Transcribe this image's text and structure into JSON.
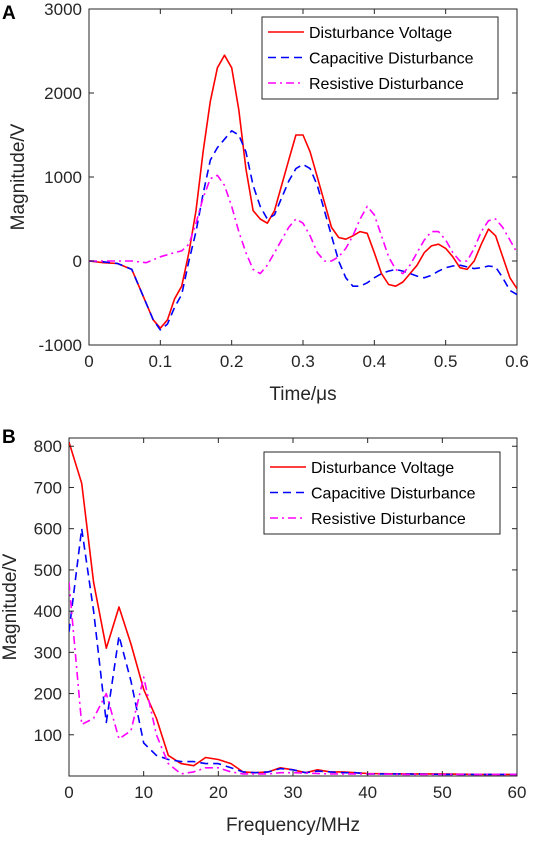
{
  "chart_data": [
    {
      "type": "line",
      "panel_label": "A",
      "xlabel": "Time/μs",
      "ylabel": "Magnitude/V",
      "xlim": [
        0,
        0.6
      ],
      "ylim": [
        -1000,
        3000
      ],
      "xticks": [
        0,
        0.1,
        0.2,
        0.3,
        0.4,
        0.5,
        0.6
      ],
      "xtick_labels": [
        "0",
        "0.1",
        "0.2",
        "0.3",
        "0.4",
        "0.5",
        "0.6"
      ],
      "yticks": [
        -1000,
        0,
        1000,
        2000,
        3000
      ],
      "ytick_labels": [
        "-1000",
        "0",
        "1000",
        "2000",
        "3000"
      ],
      "grid": false,
      "legend_position": "top-right",
      "series": [
        {
          "name": "Disturbance Voltage",
          "color": "#ff0000",
          "dash": "solid",
          "x": [
            0,
            0.02,
            0.04,
            0.06,
            0.075,
            0.09,
            0.1,
            0.11,
            0.12,
            0.13,
            0.14,
            0.15,
            0.16,
            0.17,
            0.18,
            0.19,
            0.2,
            0.21,
            0.22,
            0.23,
            0.24,
            0.25,
            0.26,
            0.27,
            0.28,
            0.29,
            0.3,
            0.31,
            0.32,
            0.33,
            0.34,
            0.35,
            0.36,
            0.37,
            0.38,
            0.39,
            0.4,
            0.41,
            0.42,
            0.43,
            0.44,
            0.45,
            0.46,
            0.47,
            0.48,
            0.49,
            0.5,
            0.51,
            0.52,
            0.53,
            0.54,
            0.55,
            0.56,
            0.57,
            0.58,
            0.59,
            0.6
          ],
          "y": [
            0,
            -20,
            -30,
            -100,
            -400,
            -700,
            -800,
            -700,
            -450,
            -300,
            100,
            600,
            1300,
            1900,
            2300,
            2450,
            2300,
            1800,
            1100,
            600,
            500,
            450,
            600,
            900,
            1200,
            1500,
            1500,
            1300,
            1000,
            700,
            400,
            280,
            260,
            300,
            350,
            330,
            100,
            -150,
            -280,
            -300,
            -250,
            -150,
            -50,
            100,
            180,
            200,
            150,
            50,
            -80,
            -100,
            0,
            200,
            380,
            300,
            50,
            -200,
            -330
          ]
        },
        {
          "name": "Capacitive Disturbance",
          "color": "#0000ff",
          "dash": "dashed",
          "x": [
            0,
            0.02,
            0.04,
            0.06,
            0.075,
            0.09,
            0.1,
            0.11,
            0.12,
            0.13,
            0.14,
            0.15,
            0.16,
            0.17,
            0.18,
            0.19,
            0.2,
            0.21,
            0.22,
            0.23,
            0.24,
            0.25,
            0.26,
            0.27,
            0.28,
            0.29,
            0.3,
            0.31,
            0.32,
            0.33,
            0.34,
            0.35,
            0.36,
            0.37,
            0.38,
            0.39,
            0.4,
            0.41,
            0.42,
            0.43,
            0.44,
            0.45,
            0.46,
            0.47,
            0.48,
            0.49,
            0.5,
            0.51,
            0.52,
            0.53,
            0.54,
            0.55,
            0.56,
            0.57,
            0.58,
            0.59,
            0.6
          ],
          "y": [
            0,
            -10,
            -30,
            -100,
            -400,
            -700,
            -820,
            -750,
            -550,
            -400,
            0,
            350,
            800,
            1200,
            1350,
            1450,
            1550,
            1500,
            1300,
            900,
            650,
            500,
            550,
            750,
            950,
            1100,
            1150,
            1100,
            900,
            600,
            300,
            0,
            -200,
            -300,
            -300,
            -260,
            -200,
            -150,
            -120,
            -100,
            -120,
            -150,
            -180,
            -200,
            -170,
            -120,
            -80,
            -60,
            -50,
            -70,
            -90,
            -80,
            -60,
            -70,
            -200,
            -350,
            -400
          ]
        },
        {
          "name": "Resistive Disturbance",
          "color": "#ff00ff",
          "dash": "dashdot",
          "x": [
            0,
            0.02,
            0.04,
            0.06,
            0.08,
            0.1,
            0.12,
            0.13,
            0.14,
            0.15,
            0.16,
            0.17,
            0.18,
            0.19,
            0.2,
            0.21,
            0.22,
            0.23,
            0.24,
            0.25,
            0.26,
            0.27,
            0.28,
            0.29,
            0.3,
            0.31,
            0.32,
            0.33,
            0.34,
            0.35,
            0.36,
            0.37,
            0.38,
            0.39,
            0.4,
            0.41,
            0.42,
            0.43,
            0.44,
            0.45,
            0.46,
            0.47,
            0.48,
            0.49,
            0.5,
            0.51,
            0.52,
            0.53,
            0.54,
            0.55,
            0.56,
            0.57,
            0.58,
            0.59,
            0.6
          ],
          "y": [
            0,
            0,
            0,
            0,
            -20,
            50,
            100,
            120,
            200,
            450,
            750,
            980,
            1020,
            900,
            650,
            350,
            100,
            -100,
            -150,
            -50,
            100,
            250,
            400,
            500,
            450,
            300,
            100,
            0,
            0,
            50,
            150,
            300,
            500,
            650,
            550,
            300,
            50,
            -100,
            -150,
            -50,
            100,
            250,
            350,
            350,
            250,
            100,
            0,
            0,
            150,
            350,
            480,
            500,
            400,
            250,
            100
          ]
        }
      ]
    },
    {
      "type": "line",
      "panel_label": "B",
      "xlabel": "Frequency/MHz",
      "ylabel": "Magnitude/V",
      "xlim": [
        0,
        60
      ],
      "ylim": [
        0,
        820
      ],
      "xticks": [
        0,
        10,
        20,
        30,
        40,
        50,
        60
      ],
      "xtick_labels": [
        "0",
        "10",
        "20",
        "30",
        "40",
        "50",
        "60"
      ],
      "yticks": [
        100,
        200,
        300,
        400,
        500,
        600,
        700,
        800
      ],
      "ytick_labels": [
        "100",
        "200",
        "300",
        "400",
        "500",
        "600",
        "700",
        "800"
      ],
      "grid": false,
      "legend_position": "top-right",
      "series": [
        {
          "name": "Disturbance Voltage",
          "color": "#ff0000",
          "dash": "solid",
          "x": [
            0,
            1.7,
            3.3,
            5,
            6.7,
            8.3,
            10,
            11.7,
            13.3,
            15,
            16.7,
            18.3,
            20,
            21.7,
            23.3,
            25,
            26.7,
            28.3,
            30,
            31.7,
            33.3,
            35,
            36.7,
            38.3,
            40,
            45,
            50,
            55,
            60
          ],
          "y": [
            810,
            710,
            470,
            310,
            410,
            320,
            210,
            140,
            50,
            30,
            25,
            45,
            40,
            30,
            10,
            8,
            10,
            20,
            15,
            8,
            15,
            10,
            10,
            8,
            6,
            5,
            5,
            4,
            4
          ]
        },
        {
          "name": "Capacitive Disturbance",
          "color": "#0000ff",
          "dash": "dashed",
          "x": [
            0,
            1.7,
            3.3,
            5,
            6.7,
            8.3,
            10,
            11.7,
            13.3,
            15,
            16.7,
            18.3,
            20,
            21.7,
            23.3,
            25,
            26.7,
            28.3,
            30,
            31.7,
            33.3,
            35,
            36.7,
            38.3,
            40,
            45,
            50,
            55,
            60
          ],
          "y": [
            350,
            600,
            400,
            130,
            340,
            230,
            80,
            50,
            40,
            35,
            35,
            30,
            30,
            20,
            10,
            8,
            10,
            18,
            15,
            8,
            12,
            10,
            8,
            8,
            5,
            5,
            4,
            4,
            4
          ]
        },
        {
          "name": "Resistive Disturbance",
          "color": "#ff00ff",
          "dash": "dashdot",
          "x": [
            0,
            1.7,
            3.3,
            5,
            6.7,
            8.3,
            10,
            11.7,
            13.3,
            15,
            16.7,
            18.3,
            20,
            21.7,
            23.3,
            25,
            26.7,
            28.3,
            30,
            35,
            40,
            45,
            50,
            55,
            60
          ],
          "y": [
            470,
            125,
            140,
            200,
            90,
            110,
            240,
            100,
            30,
            5,
            10,
            20,
            20,
            10,
            5,
            5,
            5,
            8,
            8,
            5,
            5,
            4,
            4,
            4,
            4
          ]
        }
      ]
    }
  ]
}
